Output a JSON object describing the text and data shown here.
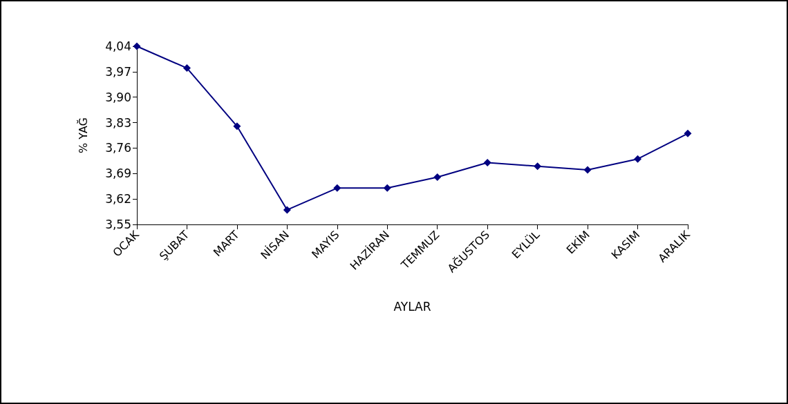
{
  "chart_data": {
    "type": "line",
    "xlabel": "AYLAR",
    "ylabel": "% YAĞ",
    "categories": [
      "OCAK",
      "ŞUBAT",
      "MART",
      "NİSAN",
      "MAYIS",
      "HAZİRAN",
      "TEMMUZ",
      "AĞUSTOS",
      "EYLÜL",
      "EKİM",
      "KASIM",
      "ARALIK"
    ],
    "series": [
      {
        "color": "#000080",
        "values": [
          4.04,
          3.98,
          3.82,
          3.59,
          3.65,
          3.65,
          3.68,
          3.72,
          3.71,
          3.7,
          3.73,
          3.8
        ]
      }
    ],
    "ylim": [
      3.55,
      4.04
    ],
    "yticks": [
      {
        "value": 3.55,
        "label": "3,55"
      },
      {
        "value": 3.62,
        "label": "3,62"
      },
      {
        "value": 3.69,
        "label": "3,69"
      },
      {
        "value": 3.76,
        "label": "3,76"
      },
      {
        "value": 3.83,
        "label": "3,83"
      },
      {
        "value": 3.9,
        "label": "3,90"
      },
      {
        "value": 3.97,
        "label": "3,97"
      },
      {
        "value": 4.04,
        "label": "4,04"
      }
    ],
    "grid": false,
    "marker": "diamond",
    "line_style": "solid"
  }
}
